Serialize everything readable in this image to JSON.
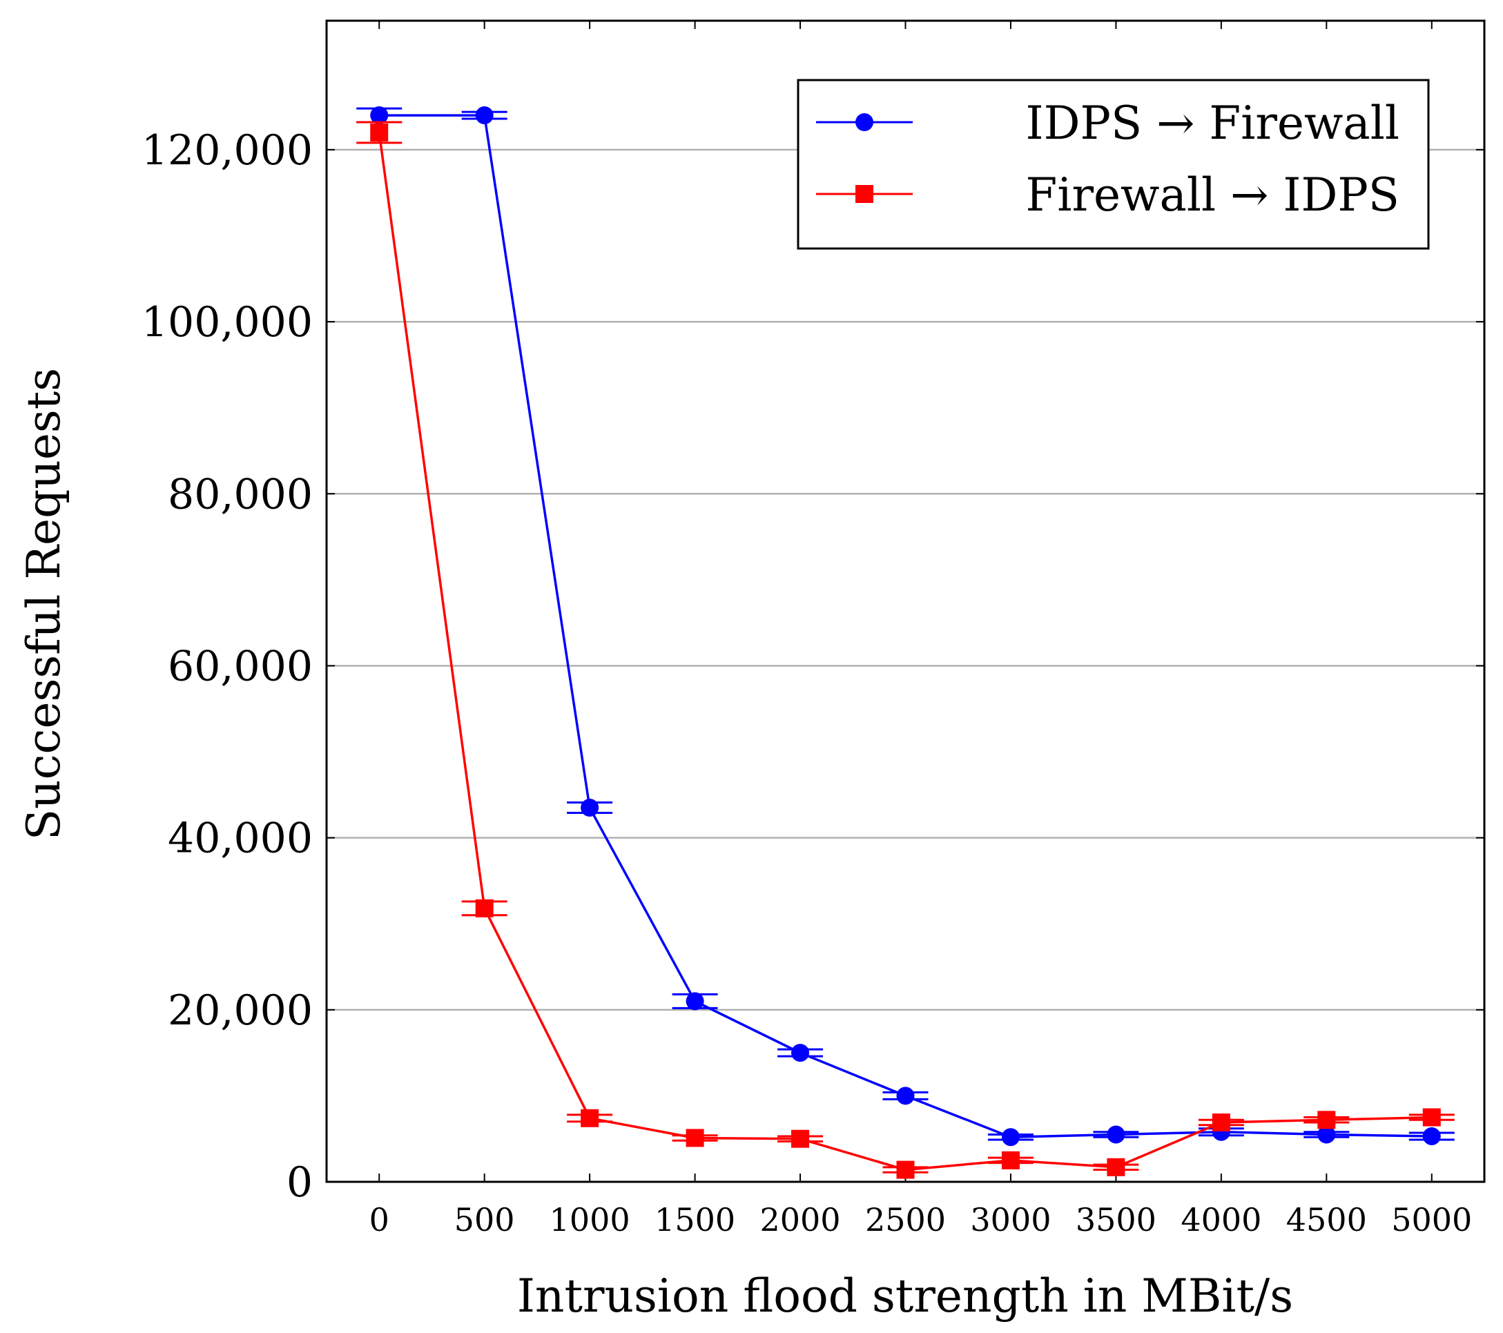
{
  "chart_data": {
    "type": "line",
    "title": "",
    "xlabel": "Intrusion flood strength in MBit/s",
    "ylabel": "Successful Requests",
    "x": [
      0,
      500,
      1000,
      1500,
      2000,
      2500,
      3000,
      3500,
      4000,
      4500,
      5000
    ],
    "x_tick_labels": [
      "0",
      "500",
      "1000",
      "1500",
      "2000",
      "2500",
      "3000",
      "3500",
      "4000",
      "4500",
      "5000"
    ],
    "y_ticks": [
      0,
      20000,
      40000,
      60000,
      80000,
      100000,
      120000
    ],
    "y_tick_labels": [
      "0",
      "20,000",
      "40,000",
      "60,000",
      "80,000",
      "100,000",
      "120,000"
    ],
    "xlim": [
      -250,
      5250
    ],
    "ylim": [
      0,
      135000
    ],
    "grid": "horizontal",
    "legend_position": "top-right",
    "series": [
      {
        "name": "IDPS → Firewall",
        "color": "#0000ff",
        "marker": "circle",
        "values": [
          124000,
          124000,
          43500,
          21000,
          15000,
          10000,
          5200,
          5500,
          5800,
          5500,
          5300
        ],
        "errors": [
          800,
          400,
          600,
          800,
          400,
          400,
          300,
          300,
          400,
          300,
          400
        ]
      },
      {
        "name": "Firewall → IDPS",
        "color": "#ff0000",
        "marker": "square",
        "values": [
          122000,
          31800,
          7400,
          5100,
          5000,
          1400,
          2500,
          1700,
          6900,
          7200,
          7500
        ],
        "errors": [
          1200,
          800,
          400,
          300,
          300,
          300,
          300,
          300,
          300,
          300,
          300
        ]
      }
    ]
  }
}
